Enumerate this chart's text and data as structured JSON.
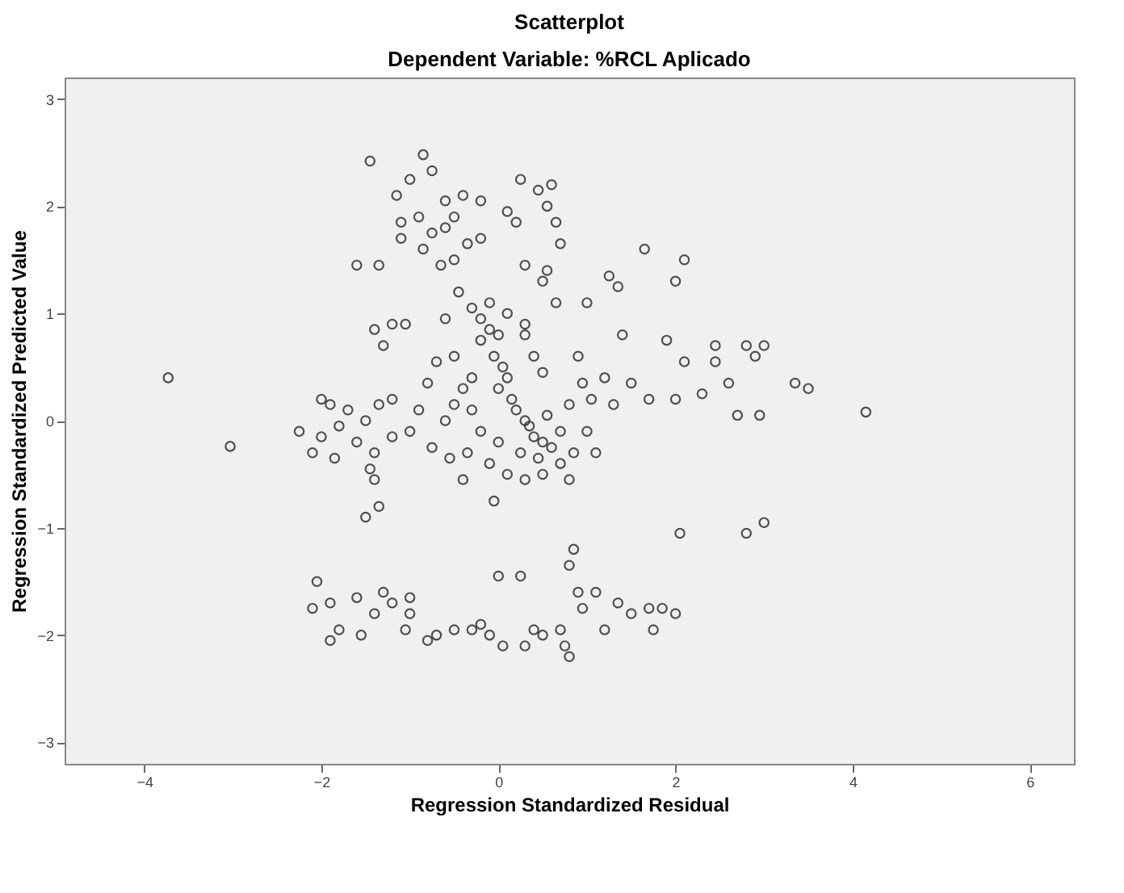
{
  "chart_data": {
    "type": "scatter",
    "title": "Scatterplot",
    "subtitle": "Dependent Variable: %RCL Aplicado",
    "xlabel": "Regression Standardized Residual",
    "ylabel": "Regression Standardized Predicted Value",
    "xlim": [
      -4.9,
      6.5
    ],
    "ylim": [
      -3.2,
      3.2
    ],
    "xticks": [
      -4,
      -2,
      0,
      2,
      4,
      6
    ],
    "yticks": [
      -3,
      -2,
      -1,
      0,
      1,
      2,
      3
    ],
    "grid": false,
    "legend": false,
    "marker": "circle",
    "series": [
      {
        "color": "#333333",
        "x": [
          -3.73,
          -3.03,
          -1.45,
          -0.85,
          -0.75,
          -1.0,
          -1.15,
          -0.6,
          -0.4,
          -0.2,
          0.25,
          0.45,
          0.55,
          0.6,
          0.1,
          0.2,
          -0.9,
          -1.1,
          -0.75,
          -0.6,
          -0.5,
          -0.35,
          -0.2,
          0.65,
          0.7,
          -1.1,
          -0.85,
          -0.65,
          -0.5,
          0.3,
          0.55,
          -1.6,
          -1.35,
          -0.45,
          -0.3,
          -0.1,
          0.1,
          0.3,
          -1.4,
          -1.2,
          -1.05,
          -1.3,
          -0.6,
          -0.2,
          0.5,
          0.65,
          1.25,
          1.35,
          1.65,
          2.1,
          2.0,
          1.0,
          1.9,
          2.1,
          1.4,
          2.45,
          2.45,
          2.8,
          3.0,
          2.9,
          2.3,
          2.6,
          3.35,
          3.5,
          2.0,
          1.7,
          2.7,
          2.95,
          4.15,
          0.9,
          0.95,
          1.2,
          1.5,
          1.05,
          1.3,
          0.8,
          -0.1,
          -0.2,
          0.0,
          -0.05,
          0.05,
          0.1,
          0.0,
          0.15,
          0.2,
          0.3,
          0.35,
          0.4,
          0.5,
          0.25,
          0.45,
          0.6,
          0.7,
          0.55,
          -0.3,
          -0.4,
          -0.5,
          -0.6,
          -0.3,
          -0.2,
          -0.35,
          -0.1,
          0.0,
          0.1,
          -0.05,
          0.3,
          0.7,
          0.85,
          1.0,
          0.8,
          1.1,
          -0.7,
          -0.8,
          -0.9,
          -1.0,
          -0.75,
          -0.55,
          -1.2,
          -1.35,
          -1.5,
          -1.6,
          -1.4,
          -1.2,
          -1.8,
          -2.0,
          -2.1,
          -1.9,
          -1.7,
          -2.0,
          -2.25,
          -1.85,
          -1.45,
          -1.4,
          -1.5,
          -1.35,
          -0.4,
          0.5,
          -0.5,
          0.4,
          0.3,
          0.5,
          -2.05,
          -1.9,
          -1.9,
          -1.6,
          -1.55,
          -1.4,
          -1.3,
          -1.2,
          -1.0,
          -1.05,
          -0.8,
          -0.7,
          -0.5,
          -0.3,
          -0.2,
          -0.1,
          0.0,
          0.25,
          0.3,
          0.4,
          0.5,
          0.7,
          0.8,
          0.85,
          0.9,
          0.95,
          1.1,
          1.2,
          1.35,
          1.5,
          1.7,
          1.85,
          2.0,
          1.75,
          0.8,
          0.75,
          2.05,
          2.8,
          3.0,
          -2.1,
          -1.8,
          -1.0,
          0.05
        ],
        "values": [
          0.4,
          -0.24,
          2.42,
          2.48,
          2.33,
          2.25,
          2.1,
          2.05,
          2.1,
          2.05,
          2.25,
          2.15,
          2.0,
          2.2,
          1.95,
          1.85,
          1.9,
          1.85,
          1.75,
          1.8,
          1.9,
          1.65,
          1.7,
          1.85,
          1.65,
          1.7,
          1.6,
          1.45,
          1.5,
          1.45,
          1.4,
          1.45,
          1.45,
          1.2,
          1.05,
          1.1,
          1.0,
          0.9,
          0.85,
          0.9,
          0.9,
          0.7,
          0.95,
          0.95,
          1.3,
          1.1,
          1.35,
          1.25,
          1.6,
          1.5,
          1.3,
          1.1,
          0.75,
          0.55,
          0.8,
          0.55,
          0.7,
          0.7,
          0.7,
          0.6,
          0.25,
          0.35,
          0.35,
          0.3,
          0.2,
          0.2,
          0.05,
          0.05,
          0.08,
          0.6,
          0.35,
          0.4,
          0.35,
          0.2,
          0.15,
          0.15,
          0.85,
          0.75,
          0.8,
          0.6,
          0.5,
          0.4,
          0.3,
          0.2,
          0.1,
          0.0,
          -0.05,
          -0.15,
          -0.2,
          -0.3,
          -0.35,
          -0.25,
          -0.1,
          0.05,
          0.4,
          0.3,
          0.15,
          0.0,
          0.1,
          -0.1,
          -0.3,
          -0.4,
          -0.2,
          -0.5,
          -0.75,
          -0.55,
          -0.4,
          -0.3,
          -0.1,
          -0.55,
          -0.3,
          0.55,
          0.35,
          0.1,
          -0.1,
          -0.25,
          -0.35,
          0.2,
          0.15,
          0.0,
          -0.2,
          -0.3,
          -0.15,
          -0.05,
          -0.15,
          -0.3,
          0.15,
          0.1,
          0.2,
          -0.1,
          -0.35,
          -0.45,
          -0.55,
          -0.9,
          -0.8,
          -0.55,
          -0.5,
          0.6,
          0.6,
          0.8,
          0.45,
          -1.5,
          -1.7,
          -2.05,
          -1.65,
          -2.0,
          -1.8,
          -1.6,
          -1.7,
          -1.65,
          -1.95,
          -2.05,
          -2.0,
          -1.95,
          -1.95,
          -1.9,
          -2.0,
          -1.45,
          -1.45,
          -2.1,
          -1.95,
          -2.0,
          -1.95,
          -1.35,
          -1.2,
          -1.6,
          -1.75,
          -1.6,
          -1.95,
          -1.7,
          -1.8,
          -1.75,
          -1.75,
          -1.8,
          -1.95,
          -2.2,
          -2.1,
          -1.05,
          -1.05,
          -0.95,
          -1.75,
          -1.95,
          -1.8,
          -2.1
        ]
      }
    ]
  }
}
